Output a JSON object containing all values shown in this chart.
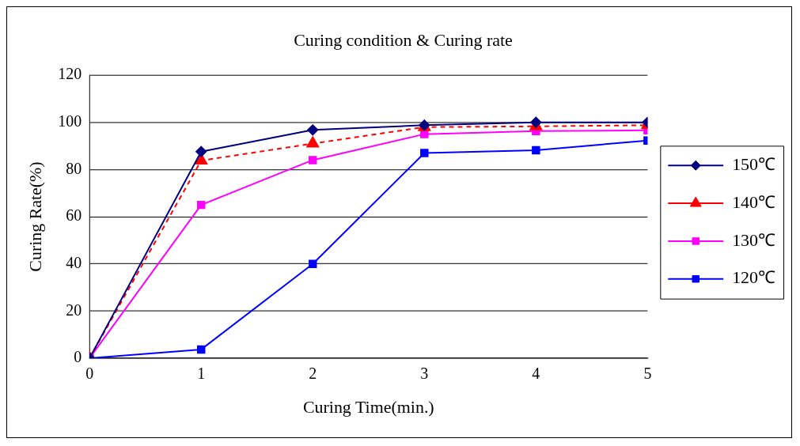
{
  "chart_data": {
    "type": "line",
    "title": "Curing condition & Curing rate",
    "xlabel": "Curing Time(min.)",
    "ylabel": "Curing Rate(%)",
    "x": [
      0,
      1,
      2,
      3,
      4,
      5
    ],
    "xlim": [
      0,
      5
    ],
    "xticks": [
      0,
      1,
      2,
      3,
      4,
      5
    ],
    "ylim": [
      0,
      120
    ],
    "yticks": [
      0,
      20,
      40,
      60,
      80,
      100,
      120
    ],
    "grid": "y",
    "legend": "right",
    "series": [
      {
        "name": "150℃",
        "color": "#000080",
        "marker": "diamond",
        "line_style": "solid",
        "values": [
          0,
          87.6,
          96.8,
          98.8,
          100,
          100
        ]
      },
      {
        "name": "140℃",
        "color": "#ff0000",
        "marker": "triangle",
        "line_style": "dashed",
        "values": [
          0,
          83.8,
          91,
          98,
          98.3,
          98.8
        ]
      },
      {
        "name": "130℃",
        "color": "#ff00ff",
        "marker": "square",
        "line_style": "solid",
        "values": [
          0,
          65,
          84,
          95,
          96.3,
          96.6
        ]
      },
      {
        "name": "120℃",
        "color": "#0000ff",
        "marker": "square",
        "line_style": "solid",
        "values": [
          0,
          3.7,
          40,
          87,
          88.2,
          92.3
        ]
      }
    ]
  }
}
